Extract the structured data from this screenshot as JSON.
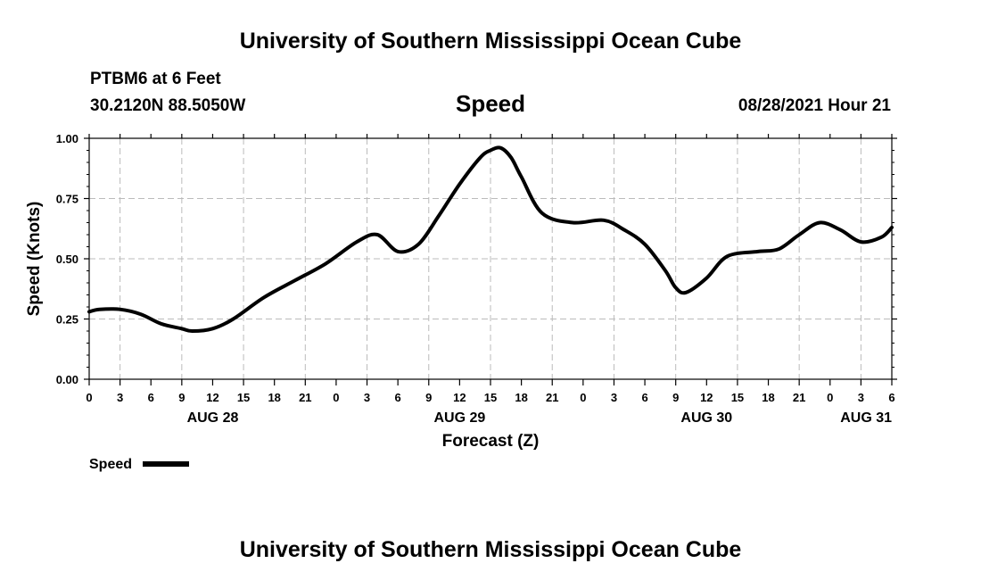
{
  "header": {
    "top_title": "University of Southern Mississippi Ocean Cube",
    "bottom_title": "University of Southern Mississippi Ocean Cube",
    "station": "PTBM6 at 6 Feet",
    "coords": "30.2120N  88.5050W",
    "datetime": "08/28/2021 Hour 21"
  },
  "chart_data": {
    "type": "line",
    "title": "Speed",
    "xlabel": "Forecast (Z)",
    "ylabel": "Speed (Knots)",
    "ylim": [
      0,
      1
    ],
    "y_ticks": [
      "0.00",
      "0.25",
      "0.50",
      "0.75",
      "1.00"
    ],
    "x_hour_ticks": [
      "0",
      "3",
      "6",
      "9",
      "12",
      "15",
      "18",
      "21",
      "0",
      "3",
      "6",
      "9",
      "12",
      "15",
      "18",
      "21",
      "0",
      "3",
      "6",
      "9",
      "12",
      "15",
      "18",
      "21",
      "0",
      "3",
      "6"
    ],
    "x_date_labels": [
      "AUG 28",
      "AUG 29",
      "AUG 30",
      "AUG 31"
    ],
    "grid": true,
    "legend_placement": "bottom-left",
    "series": [
      {
        "name": "Speed",
        "color": "#000000",
        "x": [
          "2021-08-28 00Z",
          "2021-08-28 01Z",
          "2021-08-28 03Z",
          "2021-08-28 05Z",
          "2021-08-28 07Z",
          "2021-08-28 09Z",
          "2021-08-28 10Z",
          "2021-08-28 12Z",
          "2021-08-28 14Z",
          "2021-08-28 17Z",
          "2021-08-28 20Z",
          "2021-08-28 23Z",
          "2021-08-29 02Z",
          "2021-08-29 04Z",
          "2021-08-29 06Z",
          "2021-08-29 08Z",
          "2021-08-29 10Z",
          "2021-08-29 12Z",
          "2021-08-29 14Z",
          "2021-08-29 15Z",
          "2021-08-29 16Z",
          "2021-08-29 17Z",
          "2021-08-29 18Z",
          "2021-08-29 20Z",
          "2021-08-29 23Z",
          "2021-08-30 02Z",
          "2021-08-30 04Z",
          "2021-08-30 06Z",
          "2021-08-30 08Z",
          "2021-08-30 09Z",
          "2021-08-30 10Z",
          "2021-08-30 12Z",
          "2021-08-30 14Z",
          "2021-08-30 17Z",
          "2021-08-30 19Z",
          "2021-08-30 21Z",
          "2021-08-30 23Z",
          "2021-08-31 01Z",
          "2021-08-31 03Z",
          "2021-08-31 05Z",
          "2021-08-31 06Z"
        ],
        "values": [
          0.28,
          0.29,
          0.29,
          0.27,
          0.23,
          0.21,
          0.2,
          0.21,
          0.25,
          0.34,
          0.41,
          0.48,
          0.57,
          0.6,
          0.53,
          0.56,
          0.68,
          0.81,
          0.92,
          0.95,
          0.96,
          0.92,
          0.84,
          0.69,
          0.65,
          0.66,
          0.62,
          0.56,
          0.45,
          0.38,
          0.36,
          0.42,
          0.51,
          0.53,
          0.54,
          0.6,
          0.65,
          0.62,
          0.57,
          0.59,
          0.63
        ]
      }
    ]
  }
}
